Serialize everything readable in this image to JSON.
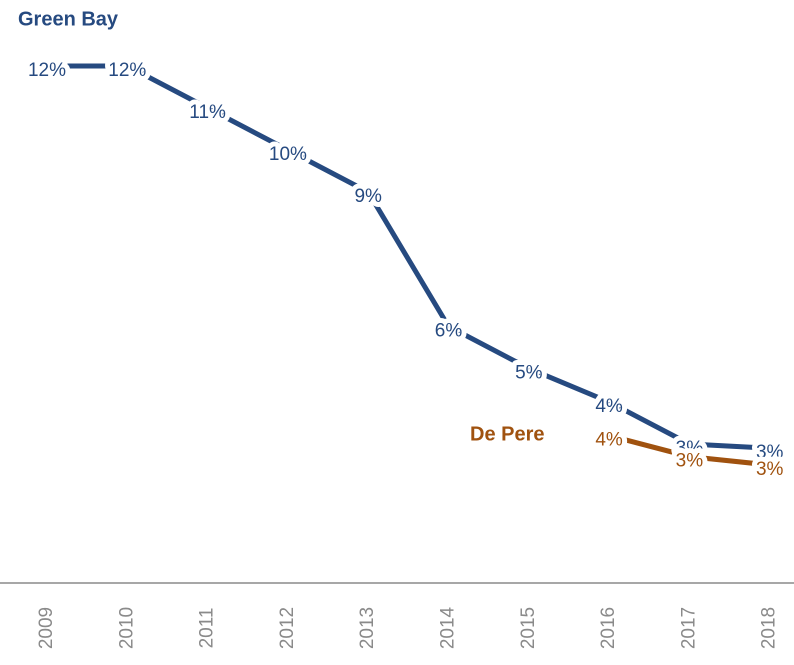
{
  "chart_data": {
    "type": "line",
    "categories": [
      "2009",
      "2010",
      "2011",
      "2012",
      "2013",
      "2014",
      "2015",
      "2016",
      "2017",
      "2018"
    ],
    "series": [
      {
        "name": "Green Bay",
        "color": "#264a80",
        "values": [
          12.4,
          12.4,
          11.4,
          10.4,
          9.4,
          6.2,
          5.2,
          4.4,
          3.4,
          3.3
        ],
        "value_labels": [
          "12%",
          "12%",
          "11%",
          "10%",
          "9%",
          "6%",
          "5%",
          "4%",
          "3%",
          "3%"
        ]
      },
      {
        "name": "De Pere",
        "color": "#a0520f",
        "values": [
          null,
          null,
          null,
          null,
          null,
          null,
          null,
          3.6,
          3.1,
          2.9
        ],
        "value_labels": [
          null,
          null,
          null,
          null,
          null,
          null,
          null,
          "4%",
          "3%",
          "3%"
        ]
      }
    ]
  }
}
